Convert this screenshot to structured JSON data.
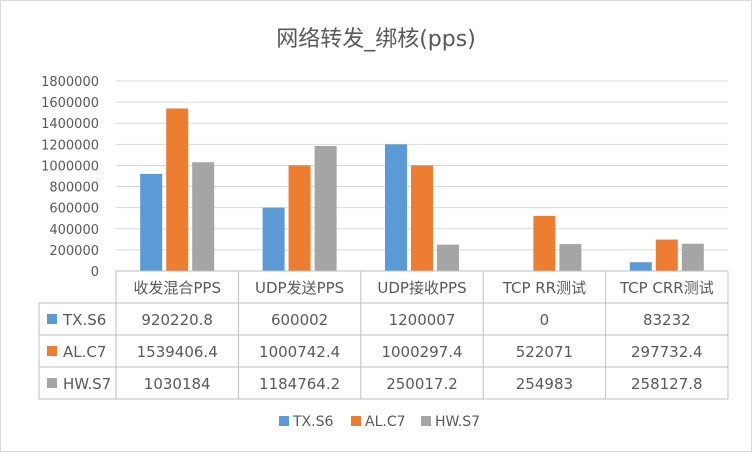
{
  "chart_data": {
    "type": "bar",
    "title": "网络转发_绑核(pps)",
    "categories": [
      "收发混合PPS",
      "UDP发送PPS",
      "UDP接收PPS",
      "TCP RR测试",
      "TCP CRR测试"
    ],
    "series": [
      {
        "name": "TX.S6",
        "color": "#5B9BD5",
        "values": [
          920220.8,
          600002,
          1200007,
          0,
          83232
        ],
        "labels": [
          "920220.8",
          "600002",
          "1200007",
          "0",
          "83232"
        ]
      },
      {
        "name": "AL.C7",
        "color": "#ED7D31",
        "values": [
          1539406.4,
          1000742.4,
          1000297.4,
          522071,
          297732.4
        ],
        "labels": [
          "1539406.4",
          "1000742.4",
          "1000297.4",
          "522071",
          "297732.4"
        ]
      },
      {
        "name": "HW.S7",
        "color": "#A5A5A5",
        "values": [
          1030184,
          1184764.2,
          250017.2,
          254983,
          258127.8
        ],
        "labels": [
          "1030184",
          "1184764.2",
          "250017.2",
          "254983",
          "258127.8"
        ]
      }
    ],
    "ylim": [
      0,
      1800000
    ],
    "yticks": [
      "0",
      "200000",
      "400000",
      "600000",
      "800000",
      "1000000",
      "1200000",
      "1400000",
      "1600000",
      "1800000"
    ],
    "grid": true,
    "legend_position": "bottom",
    "data_table": true
  }
}
